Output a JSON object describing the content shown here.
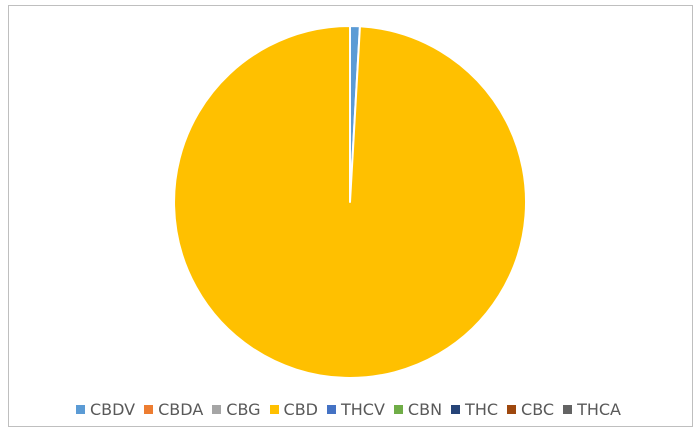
{
  "chart_data": {
    "type": "pie",
    "title": "",
    "categories": [
      "CBDV",
      "CBDA",
      "CBG",
      "CBD",
      "THCV",
      "CBN",
      "THC",
      "CBC",
      "THCA"
    ],
    "values": [
      0.9,
      0.0,
      0.0,
      99.1,
      0.0,
      0.0,
      0.0,
      0.0,
      0.0
    ],
    "colors": [
      "#5B9BD5",
      "#ED7D31",
      "#A5A5A5",
      "#FFC000",
      "#4472C4",
      "#70AD47",
      "#264478",
      "#9E480E",
      "#636363"
    ],
    "legend": "bottom",
    "start_angle_deg": 0,
    "direction": "clockwise"
  }
}
